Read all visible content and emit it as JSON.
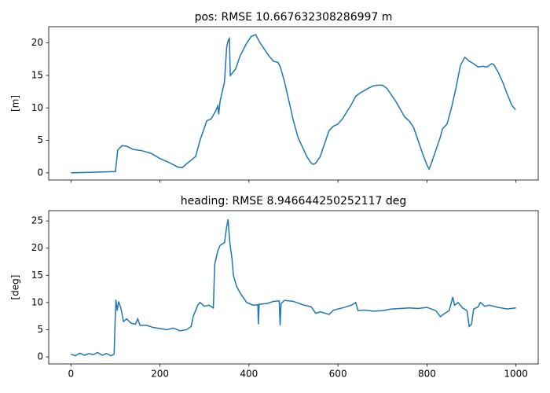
{
  "chart_data": [
    {
      "type": "line",
      "title": "pos: RMSE 10.667632308286997 m",
      "y_label": "[m]",
      "xlim": [
        -50,
        1050
      ],
      "ylim": [
        -1.1,
        22.5
      ],
      "xticks": [
        0,
        200,
        400,
        600,
        800,
        1000
      ],
      "yticks": [
        0,
        5,
        10,
        15,
        20
      ],
      "series": [
        {
          "color": "#1f77b4",
          "x": [
            0,
            50,
            100,
            105,
            115,
            125,
            140,
            160,
            180,
            200,
            220,
            240,
            250,
            260,
            280,
            290,
            300,
            305,
            315,
            325,
            330,
            332,
            335,
            345,
            350,
            354,
            356,
            358,
            362,
            370,
            380,
            395,
            405,
            415,
            425,
            435,
            445,
            455,
            465,
            470,
            480,
            490,
            500,
            510,
            520,
            530,
            540,
            545,
            550,
            560,
            570,
            580,
            590,
            600,
            610,
            620,
            630,
            640,
            650,
            660,
            670,
            680,
            690,
            700,
            710,
            720,
            730,
            740,
            750,
            760,
            770,
            780,
            790,
            800,
            805,
            810,
            820,
            830,
            835,
            845,
            855,
            865,
            875,
            885,
            895,
            905,
            915,
            925,
            935,
            945,
            950,
            960,
            970,
            980,
            990,
            999
          ],
          "values": [
            0,
            0.1,
            0.2,
            3.5,
            4.2,
            4.1,
            3.6,
            3.4,
            3.0,
            2.2,
            1.6,
            0.9,
            0.8,
            1.4,
            2.5,
            5,
            7,
            8,
            8.3,
            9.5,
            10.3,
            9,
            11,
            14,
            19.5,
            20.5,
            20.7,
            15,
            15.3,
            16,
            18,
            20,
            21,
            21.3,
            20,
            19,
            18,
            17.2,
            17,
            16.4,
            14,
            11,
            8,
            5.5,
            4,
            2.5,
            1.5,
            1.3,
            1.5,
            2.5,
            4.5,
            6.5,
            7.2,
            7.5,
            8.3,
            9.4,
            10.5,
            11.8,
            12.3,
            12.7,
            13.1,
            13.4,
            13.5,
            13.5,
            13,
            12,
            11,
            9.8,
            8.6,
            8,
            7,
            5,
            3,
            1.2,
            0.6,
            1.5,
            3.5,
            5.5,
            6.8,
            7.5,
            10,
            13,
            16.5,
            17.8,
            17.2,
            16.8,
            16.3,
            16.4,
            16.3,
            16.8,
            16.7,
            15.5,
            14,
            12.2,
            10.5,
            9.7
          ]
        }
      ]
    },
    {
      "type": "line",
      "title": "heading: RMSE 8.946644250252117 deg",
      "y_label": "[deg]",
      "xlim": [
        -50,
        1050
      ],
      "ylim": [
        -1.3,
        26.9
      ],
      "xticks": [
        0,
        200,
        400,
        600,
        800,
        1000
      ],
      "yticks": [
        0,
        5,
        10,
        15,
        20,
        25
      ],
      "series": [
        {
          "color": "#1f77b4",
          "x": [
            0,
            10,
            20,
            30,
            40,
            50,
            60,
            70,
            80,
            90,
            97,
            99,
            101,
            104,
            107,
            112,
            118,
            125,
            135,
            145,
            150,
            155,
            170,
            185,
            200,
            215,
            230,
            245,
            260,
            270,
            275,
            285,
            290,
            300,
            310,
            320,
            323,
            330,
            335,
            345,
            350,
            353,
            357,
            362,
            365,
            372,
            382,
            395,
            410,
            420,
            421,
            423,
            440,
            455,
            468,
            470,
            472,
            480,
            500,
            520,
            540,
            550,
            560,
            580,
            590,
            610,
            630,
            640,
            645,
            660,
            680,
            700,
            720,
            740,
            760,
            780,
            800,
            820,
            830,
            840,
            850,
            858,
            862,
            870,
            880,
            890,
            895,
            900,
            905,
            915,
            920,
            930,
            940,
            960,
            980,
            1000
          ],
          "values": [
            0.5,
            0.2,
            0.7,
            0.3,
            0.6,
            0.4,
            0.8,
            0.3,
            0.6,
            0.2,
            0.5,
            6,
            10.5,
            8.5,
            10.2,
            9,
            6.5,
            7,
            6.2,
            6.0,
            7,
            5.8,
            5.8,
            5.4,
            5.2,
            5.0,
            5.3,
            4.8,
            5.0,
            5.6,
            7.5,
            9.5,
            10,
            9.3,
            9.5,
            9,
            17,
            19.5,
            20.5,
            21,
            24,
            25.3,
            21,
            18,
            15,
            13,
            11.5,
            10,
            9.5,
            9.6,
            6,
            9.7,
            9.8,
            10.2,
            10.3,
            5.8,
            9.8,
            10.4,
            10.2,
            9.6,
            9.2,
            8.0,
            8.3,
            7.8,
            8.6,
            9.0,
            9.5,
            10.0,
            8.5,
            8.6,
            8.4,
            8.5,
            8.8,
            8.9,
            9.0,
            8.9,
            9.1,
            8.5,
            7.4,
            8.0,
            8.5,
            11,
            9.5,
            10,
            9,
            8.5,
            5.6,
            6,
            8.8,
            9.2,
            10,
            9.3,
            9.5,
            9.1,
            8.8,
            9.0
          ]
        }
      ]
    }
  ]
}
